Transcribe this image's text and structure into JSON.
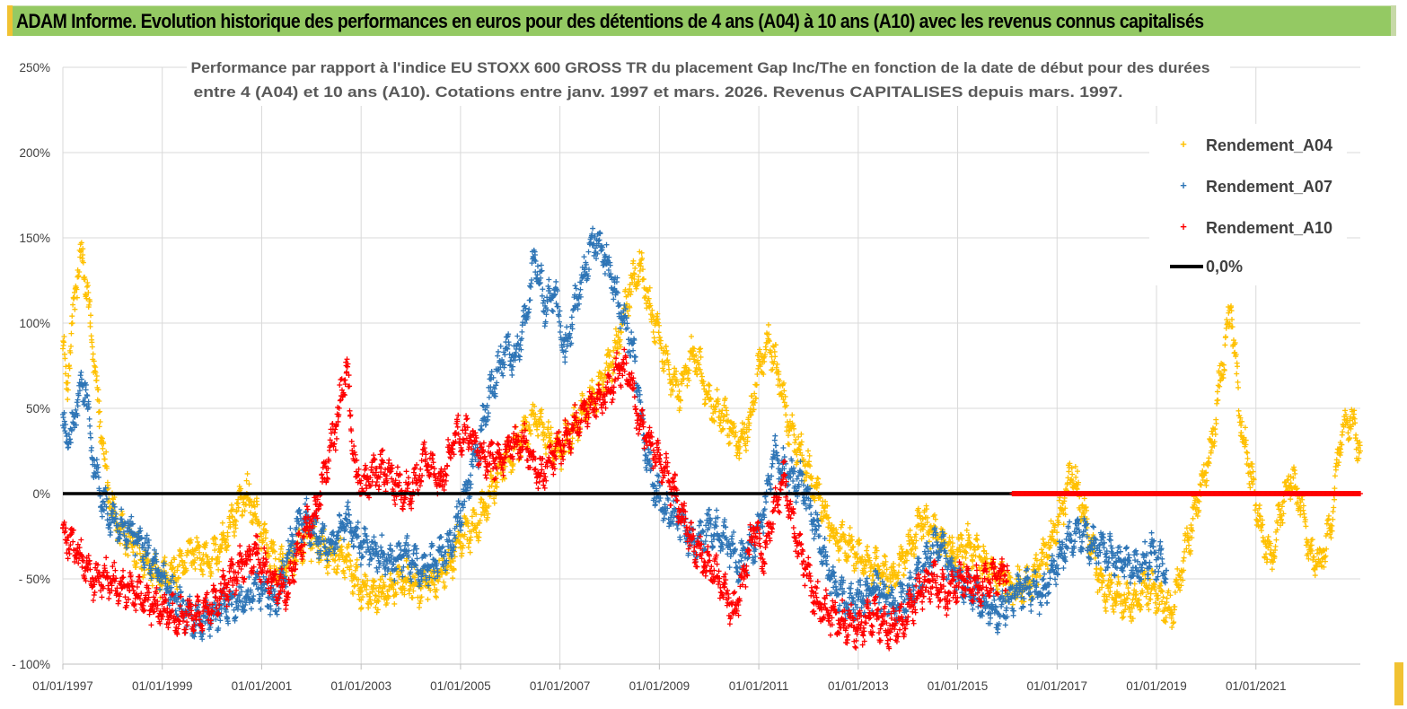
{
  "header": {
    "title": "ADAM Informe. Evolution historique des performances en euros pour des détentions de 4 ans (A04) à 10 ans (A10) avec les revenus connus capitalisés"
  },
  "colors": {
    "header_bg": "#94c963",
    "a04": "#ffc000",
    "a07": "#2e75b6",
    "a10": "#ff0000",
    "zero": "#000000",
    "grid": "#d9d9d9"
  },
  "chart_data": {
    "type": "scatter",
    "title_line1": "Performance par rapport à l'indice EU STOXX 600 GROSS TR  du placement Gap Inc/The en fonction de la date de début pour des durées",
    "title_line2": "entre 4 (A04) et 10 ans (A10). Cotations entre janv. 1997 et mars. 2026. Revenus CAPITALISES depuis mars. 1997.",
    "xlabel": "",
    "ylabel": "",
    "xlim": [
      1997.0,
      2023.1
    ],
    "ylim": [
      -100,
      250
    ],
    "y_ticks": [
      250,
      200,
      150,
      100,
      50,
      0,
      -50,
      -100
    ],
    "y_tick_labels": [
      "250%",
      "200%",
      "150%",
      "100%",
      "50%",
      "0%",
      "- 50%",
      "- 100%"
    ],
    "x_ticks": [
      1997,
      1999,
      2001,
      2003,
      2005,
      2007,
      2009,
      2011,
      2013,
      2015,
      2017,
      2019,
      2021
    ],
    "x_tick_labels": [
      "01/01/1997",
      "01/01/1999",
      "01/01/2001",
      "01/01/2003",
      "01/01/2005",
      "01/01/2007",
      "01/01/2009",
      "01/01/2011",
      "01/01/2013",
      "01/01/2015",
      "01/01/2017",
      "01/01/2019",
      "01/01/2021"
    ],
    "grid": true,
    "legend_position": "top-right",
    "series": [
      {
        "name": "Rendement_A04",
        "marker": "+",
        "x": [
          1997.0,
          1997.1,
          1997.25,
          1997.4,
          1997.55,
          1997.7,
          1997.9,
          1998.1,
          1998.4,
          1998.7,
          1999.0,
          1999.3,
          1999.6,
          1999.9,
          2000.2,
          2000.5,
          2000.7,
          2000.9,
          2001.1,
          2001.3,
          2001.5,
          2001.7,
          2001.9,
          2002.1,
          2002.4,
          2002.7,
          2003.0,
          2003.3,
          2003.6,
          2003.9,
          2004.2,
          2004.5,
          2004.8,
          2005.0,
          2005.3,
          2005.6,
          2005.9,
          2006.2,
          2006.5,
          2006.8,
          2007.0,
          2007.3,
          2007.6,
          2007.8,
          2008.0,
          2008.2,
          2008.4,
          2008.6,
          2008.8,
          2009.0,
          2009.2,
          2009.4,
          2009.7,
          2010.0,
          2010.3,
          2010.6,
          2010.8,
          2011.0,
          2011.2,
          2011.4,
          2011.6,
          2011.9,
          2012.2,
          2012.5,
          2012.8,
          2013.1,
          2013.4,
          2013.7,
          2014.0,
          2014.3,
          2014.6,
          2014.9,
          2015.2,
          2015.5,
          2015.8,
          2016.1,
          2016.4,
          2016.7,
          2016.9,
          2017.1,
          2017.3,
          2017.6,
          2017.9,
          2018.2,
          2018.5,
          2018.8,
          2019.0,
          2019.3,
          2019.5,
          2019.7,
          2019.9,
          2020.1,
          2020.3,
          2020.5,
          2020.7,
          2020.9,
          2021.1,
          2021.3,
          2021.5,
          2021.7,
          2021.9,
          2022.1,
          2022.3,
          2022.5,
          2022.7,
          2022.9,
          2023.1
        ],
        "y": [
          85,
          65,
          120,
          140,
          100,
          55,
          5,
          -20,
          -30,
          -40,
          -50,
          -45,
          -35,
          -40,
          -30,
          -10,
          0,
          -15,
          -30,
          -45,
          -40,
          -35,
          -25,
          -30,
          -35,
          -40,
          -55,
          -60,
          -55,
          -50,
          -55,
          -50,
          -40,
          -25,
          -20,
          0,
          20,
          30,
          45,
          30,
          25,
          40,
          55,
          60,
          75,
          90,
          120,
          135,
          110,
          90,
          70,
          60,
          85,
          55,
          45,
          30,
          40,
          75,
          90,
          70,
          40,
          20,
          0,
          -25,
          -30,
          -40,
          -45,
          -50,
          -35,
          -15,
          -25,
          -35,
          -30,
          -40,
          -50,
          -55,
          -55,
          -40,
          -25,
          -10,
          15,
          -20,
          -55,
          -60,
          -65,
          -55,
          -60,
          -70,
          -45,
          -20,
          5,
          25,
          70,
          110,
          40,
          10,
          -20,
          -40,
          -10,
          10,
          -5,
          -35,
          -40,
          -20,
          30,
          45,
          25
        ],
        "color": "#ffc000"
      },
      {
        "name": "Rendement_A07",
        "marker": "+",
        "x": [
          1997.0,
          1997.15,
          1997.3,
          1997.45,
          1997.6,
          1997.8,
          1998.0,
          1998.3,
          1998.6,
          1998.9,
          1999.2,
          1999.5,
          1999.8,
          2000.1,
          2000.4,
          2000.7,
          2001.0,
          2001.3,
          2001.5,
          2001.7,
          2001.9,
          2002.1,
          2002.4,
          2002.7,
          2003.0,
          2003.3,
          2003.6,
          2003.9,
          2004.2,
          2004.5,
          2004.8,
          2005.0,
          2005.3,
          2005.6,
          2005.9,
          2006.1,
          2006.3,
          2006.5,
          2006.7,
          2006.9,
          2007.1,
          2007.3,
          2007.5,
          2007.7,
          2007.9,
          2008.1,
          2008.3,
          2008.5,
          2008.7,
          2008.9,
          2009.1,
          2009.4,
          2009.7,
          2010.0,
          2010.3,
          2010.6,
          2010.9,
          2011.1,
          2011.3,
          2011.6,
          2011.9,
          2012.2,
          2012.5,
          2012.8,
          2013.1,
          2013.4,
          2013.7,
          2014.0,
          2014.3,
          2014.6,
          2014.9,
          2015.2,
          2015.5,
          2015.8,
          2016.1,
          2016.4,
          2016.7,
          2016.9,
          2017.1,
          2017.4,
          2017.7,
          2018.0,
          2018.3,
          2018.6,
          2018.9,
          2019.2
        ],
        "y": [
          40,
          30,
          55,
          65,
          20,
          -5,
          -15,
          -20,
          -30,
          -45,
          -60,
          -70,
          -75,
          -70,
          -65,
          -60,
          -55,
          -65,
          -40,
          -20,
          -15,
          -25,
          -30,
          -15,
          -30,
          -35,
          -40,
          -35,
          -45,
          -40,
          -30,
          -10,
          20,
          60,
          85,
          80,
          100,
          140,
          110,
          120,
          80,
          110,
          130,
          150,
          140,
          120,
          100,
          80,
          30,
          5,
          -10,
          -15,
          -30,
          -20,
          -25,
          -40,
          -30,
          -10,
          25,
          10,
          5,
          -25,
          -55,
          -65,
          -60,
          -55,
          -65,
          -60,
          -45,
          -30,
          -45,
          -55,
          -65,
          -70,
          -60,
          -55,
          -60,
          -45,
          -35,
          -20,
          -30,
          -35,
          -40,
          -45,
          -35,
          -45
        ],
        "color": "#2e75b6"
      },
      {
        "name": "Rendement_A10",
        "marker": "+",
        "x": [
          1997.0,
          1997.3,
          1997.6,
          1997.9,
          1998.2,
          1998.5,
          1998.8,
          1999.1,
          1999.4,
          1999.7,
          2000.0,
          2000.3,
          2000.6,
          2000.9,
          2001.2,
          2001.5,
          2001.7,
          2001.9,
          2002.1,
          2002.3,
          2002.5,
          2002.7,
          2002.9,
          2003.1,
          2003.4,
          2003.7,
          2004.0,
          2004.3,
          2004.6,
          2004.9,
          2005.2,
          2005.5,
          2005.8,
          2006.0,
          2006.3,
          2006.6,
          2006.9,
          2007.2,
          2007.5,
          2007.8,
          2008.0,
          2008.2,
          2008.4,
          2008.6,
          2008.8,
          2009.0,
          2009.3,
          2009.6,
          2009.9,
          2010.1,
          2010.3,
          2010.5,
          2010.7,
          2010.9,
          2011.1,
          2011.3,
          2011.5,
          2011.7,
          2011.9,
          2012.1,
          2012.4,
          2012.7,
          2013.0,
          2013.3,
          2013.6,
          2013.9,
          2014.2,
          2014.5,
          2014.8,
          2015.1,
          2015.4,
          2015.7,
          2016.0
        ],
        "y": [
          -20,
          -35,
          -50,
          -50,
          -55,
          -60,
          -65,
          -70,
          -72,
          -70,
          -65,
          -55,
          -40,
          -35,
          -50,
          -60,
          -35,
          -20,
          -10,
          15,
          40,
          75,
          10,
          5,
          15,
          5,
          0,
          20,
          5,
          35,
          35,
          20,
          20,
          30,
          30,
          10,
          25,
          35,
          50,
          55,
          60,
          75,
          70,
          40,
          30,
          20,
          0,
          -25,
          -40,
          -45,
          -55,
          -70,
          -50,
          -20,
          -40,
          -10,
          10,
          -20,
          -40,
          -60,
          -70,
          -75,
          -80,
          -70,
          -80,
          -75,
          -60,
          -50,
          -60,
          -50,
          -55,
          -50,
          -45
        ],
        "color": "#ff0000"
      },
      {
        "name": "0,0%",
        "type": "line",
        "x": [
          1997.0,
          2023.1
        ],
        "y": [
          0,
          0
        ],
        "color": "#000000"
      }
    ],
    "zero_markers": {
      "series": "Rendement_A10",
      "x_start": 2016.1,
      "x_end": 2023.1,
      "y": 0
    }
  }
}
